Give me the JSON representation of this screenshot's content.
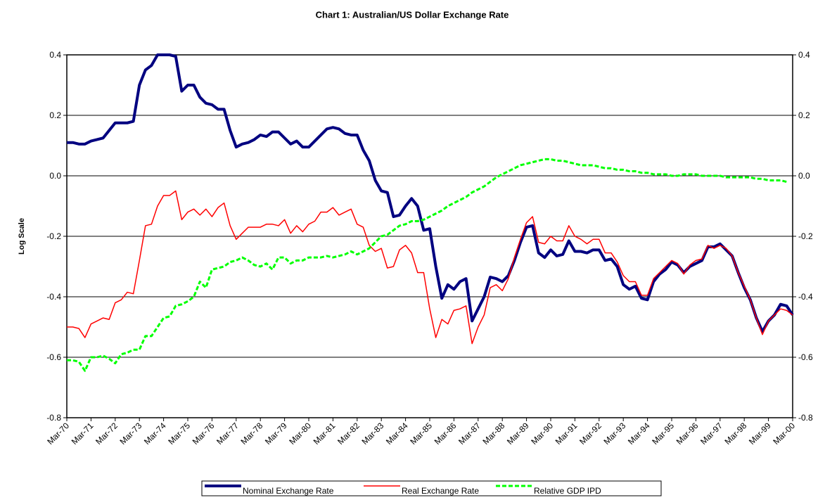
{
  "chart_data": {
    "type": "line",
    "title": "Chart 1: Australian/US Dollar Exchange Rate",
    "ylabel": "Log Scale",
    "categories": [
      "Mar-70",
      null,
      null,
      null,
      "Mar-71",
      null,
      null,
      null,
      "Mar-72",
      null,
      null,
      null,
      "Mar-73",
      null,
      null,
      null,
      "Mar-74",
      null,
      null,
      null,
      "Mar-75",
      null,
      null,
      null,
      "Mar-76",
      null,
      null,
      null,
      "Mar-77",
      null,
      null,
      null,
      "Mar-78",
      null,
      null,
      null,
      "Mar-79",
      null,
      null,
      null,
      "Mar-80",
      null,
      null,
      null,
      "Mar-81",
      null,
      null,
      null,
      "Mar-82",
      null,
      null,
      null,
      "Mar-83",
      null,
      null,
      null,
      "Mar-84",
      null,
      null,
      null,
      "Mar-85",
      null,
      null,
      null,
      "Mar-86",
      null,
      null,
      null,
      "Mar-87",
      null,
      null,
      null,
      "Mar-88",
      null,
      null,
      null,
      "Mar-89",
      null,
      null,
      null,
      "Mar-90",
      null,
      null,
      null,
      "Mar-91",
      null,
      null,
      null,
      "Mar-92",
      null,
      null,
      null,
      "Mar-93",
      null,
      null,
      null,
      "Mar-94",
      null,
      null,
      null,
      "Mar-95",
      null,
      null,
      null,
      "Mar-96",
      null,
      null,
      null,
      "Mar-97",
      null,
      null,
      null,
      "Mar-98",
      null,
      null,
      null,
      "Mar-99",
      null,
      null,
      null,
      "Mar-00"
    ],
    "series": [
      {
        "name": "Nominal Exchange Rate",
        "color": "#000080",
        "width": 4,
        "dashed": false,
        "values": [
          0.11,
          0.11,
          0.105,
          0.105,
          0.115,
          0.12,
          0.125,
          0.15,
          0.175,
          0.175,
          0.175,
          0.18,
          0.3,
          0.35,
          0.365,
          0.4,
          0.4,
          0.4,
          0.395,
          0.28,
          0.3,
          0.3,
          0.26,
          0.24,
          0.235,
          0.22,
          0.22,
          0.15,
          0.095,
          0.105,
          0.11,
          0.12,
          0.135,
          0.13,
          0.145,
          0.145,
          0.125,
          0.105,
          0.115,
          0.095,
          0.095,
          0.115,
          0.135,
          0.155,
          0.16,
          0.155,
          0.14,
          0.135,
          0.135,
          0.085,
          0.05,
          -0.015,
          -0.05,
          -0.055,
          -0.135,
          -0.13,
          -0.1,
          -0.075,
          -0.1,
          -0.18,
          -0.175,
          -0.3,
          -0.405,
          -0.36,
          -0.375,
          -0.35,
          -0.34,
          -0.48,
          -0.44,
          -0.4,
          -0.335,
          -0.34,
          -0.35,
          -0.33,
          -0.28,
          -0.22,
          -0.17,
          -0.165,
          -0.255,
          -0.27,
          -0.245,
          -0.265,
          -0.26,
          -0.215,
          -0.25,
          -0.25,
          -0.255,
          -0.245,
          -0.245,
          -0.28,
          -0.275,
          -0.3,
          -0.36,
          -0.375,
          -0.365,
          -0.405,
          -0.41,
          -0.35,
          -0.325,
          -0.31,
          -0.285,
          -0.295,
          -0.32,
          -0.3,
          -0.29,
          -0.28,
          -0.235,
          -0.235,
          -0.225,
          -0.245,
          -0.265,
          -0.32,
          -0.37,
          -0.41,
          -0.47,
          -0.515,
          -0.48,
          -0.46,
          -0.425,
          -0.43,
          -0.46
        ]
      },
      {
        "name": "Real Exchange Rate",
        "color": "#ff0000",
        "width": 1.5,
        "dashed": false,
        "values": [
          -0.5,
          -0.5,
          -0.505,
          -0.535,
          -0.49,
          -0.48,
          -0.47,
          -0.475,
          -0.42,
          -0.41,
          -0.385,
          -0.39,
          -0.28,
          -0.165,
          -0.16,
          -0.1,
          -0.065,
          -0.065,
          -0.05,
          -0.145,
          -0.12,
          -0.11,
          -0.13,
          -0.11,
          -0.135,
          -0.105,
          -0.09,
          -0.165,
          -0.21,
          -0.19,
          -0.17,
          -0.17,
          -0.17,
          -0.16,
          -0.16,
          -0.165,
          -0.145,
          -0.19,
          -0.165,
          -0.185,
          -0.16,
          -0.15,
          -0.12,
          -0.12,
          -0.105,
          -0.13,
          -0.12,
          -0.11,
          -0.16,
          -0.17,
          -0.23,
          -0.25,
          -0.24,
          -0.305,
          -0.3,
          -0.245,
          -0.23,
          -0.255,
          -0.32,
          -0.32,
          -0.44,
          -0.535,
          -0.475,
          -0.49,
          -0.445,
          -0.44,
          -0.43,
          -0.555,
          -0.5,
          -0.46,
          -0.37,
          -0.36,
          -0.38,
          -0.34,
          -0.27,
          -0.21,
          -0.155,
          -0.135,
          -0.22,
          -0.225,
          -0.2,
          -0.215,
          -0.215,
          -0.165,
          -0.2,
          -0.21,
          -0.225,
          -0.21,
          -0.21,
          -0.255,
          -0.255,
          -0.285,
          -0.33,
          -0.35,
          -0.35,
          -0.395,
          -0.395,
          -0.34,
          -0.32,
          -0.3,
          -0.28,
          -0.29,
          -0.325,
          -0.295,
          -0.28,
          -0.275,
          -0.23,
          -0.24,
          -0.23,
          -0.24,
          -0.265,
          -0.32,
          -0.365,
          -0.41,
          -0.47,
          -0.525,
          -0.48,
          -0.46,
          -0.44,
          -0.445,
          -0.46
        ]
      },
      {
        "name": "Relative GDP IPD",
        "color": "#00ff00",
        "width": 3,
        "dashed": true,
        "values": [
          -0.61,
          -0.61,
          -0.615,
          -0.645,
          -0.6,
          -0.6,
          -0.595,
          -0.605,
          -0.62,
          -0.59,
          -0.585,
          -0.575,
          -0.575,
          -0.53,
          -0.53,
          -0.5,
          -0.47,
          -0.465,
          -0.43,
          -0.425,
          -0.415,
          -0.4,
          -0.35,
          -0.37,
          -0.31,
          -0.305,
          -0.3,
          -0.285,
          -0.28,
          -0.27,
          -0.28,
          -0.295,
          -0.3,
          -0.29,
          -0.31,
          -0.27,
          -0.27,
          -0.29,
          -0.28,
          -0.28,
          -0.27,
          -0.27,
          -0.27,
          -0.265,
          -0.27,
          -0.265,
          -0.26,
          -0.25,
          -0.26,
          -0.25,
          -0.24,
          -0.22,
          -0.2,
          -0.195,
          -0.18,
          -0.165,
          -0.16,
          -0.15,
          -0.15,
          -0.145,
          -0.135,
          -0.125,
          -0.115,
          -0.1,
          -0.09,
          -0.08,
          -0.07,
          -0.055,
          -0.045,
          -0.035,
          -0.02,
          -0.005,
          0.005,
          0.015,
          0.025,
          0.035,
          0.04,
          0.045,
          0.05,
          0.055,
          0.055,
          0.05,
          0.05,
          0.045,
          0.04,
          0.035,
          0.035,
          0.035,
          0.03,
          0.025,
          0.025,
          0.02,
          0.02,
          0.015,
          0.015,
          0.01,
          0.01,
          0.005,
          0.005,
          0.005,
          0,
          0,
          0.005,
          0.005,
          0.005,
          0,
          0,
          0,
          0,
          -0.005,
          -0.005,
          -0.005,
          -0.005,
          -0.005,
          -0.01,
          -0.01,
          -0.015,
          -0.015,
          -0.015,
          -0.02,
          null
        ]
      }
    ],
    "ylim": [
      -0.8,
      0.4
    ],
    "yticks": [
      -0.8,
      -0.6,
      -0.4,
      -0.2,
      {
        "value": 0,
        "label": "0.0"
      },
      0.2,
      0.4
    ],
    "y2lim": [
      -0.8,
      0.4
    ],
    "y2ticks": [
      -0.8,
      -0.6,
      -0.4,
      -0.2,
      {
        "value": 0,
        "label": "0.0"
      },
      0.2,
      0.4
    ],
    "grid": true,
    "legend": "bottom"
  }
}
